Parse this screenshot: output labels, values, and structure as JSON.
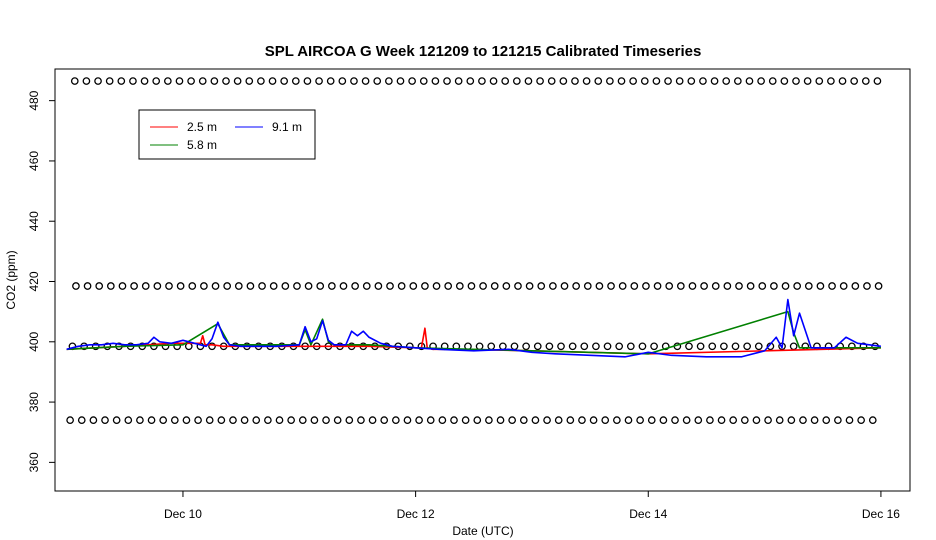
{
  "chart_data": {
    "type": "line",
    "title": "SPL AIRCOA G  Week 121209 to 121215  Calibrated Timeseries",
    "xlabel": "Date (UTC)",
    "ylabel": "CO2 (ppm)",
    "xlim": [
      8.9,
      16.25
    ],
    "ylim": [
      350.5,
      490.5
    ],
    "x_ticks": [
      {
        "value": 10,
        "label": "Dec 10"
      },
      {
        "value": 12,
        "label": "Dec 12"
      },
      {
        "value": 14,
        "label": "Dec 14"
      },
      {
        "value": 16,
        "label": "Dec 16"
      }
    ],
    "y_ticks": [
      360,
      380,
      400,
      420,
      440,
      460,
      480
    ],
    "legend": {
      "placement": "top-left",
      "entries": [
        {
          "label": "2.5 m",
          "color": "#ff0000"
        },
        {
          "label": "5.8 m",
          "color": "#008000"
        },
        {
          "label": "9.1 m",
          "color": "#0000ff"
        }
      ]
    },
    "calibration_levels": [
      {
        "y": 486.5,
        "x_start": 9.07,
        "x_end": 16.0,
        "spacing": 0.1
      },
      {
        "y": 418.5,
        "x_start": 9.08,
        "x_end": 16.0,
        "spacing": 0.1
      },
      {
        "y": 398.5,
        "x_start": 9.05,
        "x_end": 16.0,
        "spacing": 0.1
      },
      {
        "y": 374.0,
        "x_start": 9.03,
        "x_end": 16.0,
        "spacing": 0.1
      }
    ],
    "series": [
      {
        "name": "2.5 m",
        "color": "#ff0000",
        "x": [
          9.0,
          9.5,
          9.9,
          10.1,
          10.15,
          10.17,
          10.19,
          10.25,
          10.35,
          10.6,
          11.0,
          11.6,
          12.0,
          12.05,
          12.08,
          12.1,
          12.15,
          12.4,
          13.0,
          14.0,
          15.0,
          16.0
        ],
        "y": [
          397.5,
          398.5,
          399.5,
          399.5,
          399.5,
          402.0,
          399.0,
          399.0,
          398.5,
          398.5,
          398.5,
          398.5,
          398.0,
          398.0,
          404.5,
          398.0,
          397.5,
          397.5,
          397.0,
          396.0,
          397.0,
          398.0
        ]
      },
      {
        "name": "5.8 m",
        "color": "#008000",
        "x": [
          9.0,
          9.5,
          10.0,
          10.3,
          10.4,
          11.0,
          11.05,
          11.1,
          11.2,
          11.25,
          11.3,
          11.6,
          12.0,
          14.0,
          15.2,
          15.25,
          15.3,
          16.0
        ],
        "y": [
          397.5,
          398.5,
          399.0,
          406.0,
          399.0,
          399.0,
          404.0,
          399.0,
          407.5,
          400.0,
          399.0,
          399.0,
          398.0,
          396.0,
          410.0,
          403.0,
          398.0,
          398.0
        ]
      },
      {
        "name": "9.1 m",
        "color": "#0000ff",
        "x": [
          9.0,
          9.1,
          9.2,
          9.3,
          9.4,
          9.5,
          9.6,
          9.7,
          9.75,
          9.8,
          9.9,
          10.0,
          10.1,
          10.2,
          10.25,
          10.3,
          10.35,
          10.4,
          10.5,
          10.6,
          10.8,
          11.0,
          11.05,
          11.1,
          11.15,
          11.2,
          11.25,
          11.3,
          11.4,
          11.45,
          11.5,
          11.55,
          11.6,
          11.7,
          11.8,
          12.0,
          12.2,
          12.5,
          12.8,
          13.0,
          13.2,
          13.5,
          13.8,
          14.0,
          14.2,
          14.5,
          14.8,
          15.0,
          15.1,
          15.15,
          15.2,
          15.25,
          15.3,
          15.4,
          15.6,
          15.7,
          15.8,
          16.0
        ],
        "y": [
          397.5,
          398.5,
          399.0,
          399.0,
          399.5,
          399.0,
          399.0,
          399.5,
          401.5,
          400.0,
          399.5,
          400.5,
          399.5,
          398.5,
          401.0,
          406.5,
          401.5,
          399.0,
          398.5,
          398.5,
          398.5,
          399.0,
          405.0,
          400.0,
          401.0,
          407.0,
          400.5,
          399.0,
          399.0,
          403.5,
          402.0,
          403.5,
          401.5,
          399.5,
          398.5,
          398.0,
          397.5,
          397.0,
          397.5,
          396.5,
          396.0,
          395.5,
          395.0,
          396.5,
          395.5,
          395.0,
          395.0,
          397.0,
          401.5,
          398.0,
          414.0,
          402.0,
          409.5,
          398.0,
          398.0,
          401.5,
          399.5,
          398.5
        ]
      }
    ]
  }
}
